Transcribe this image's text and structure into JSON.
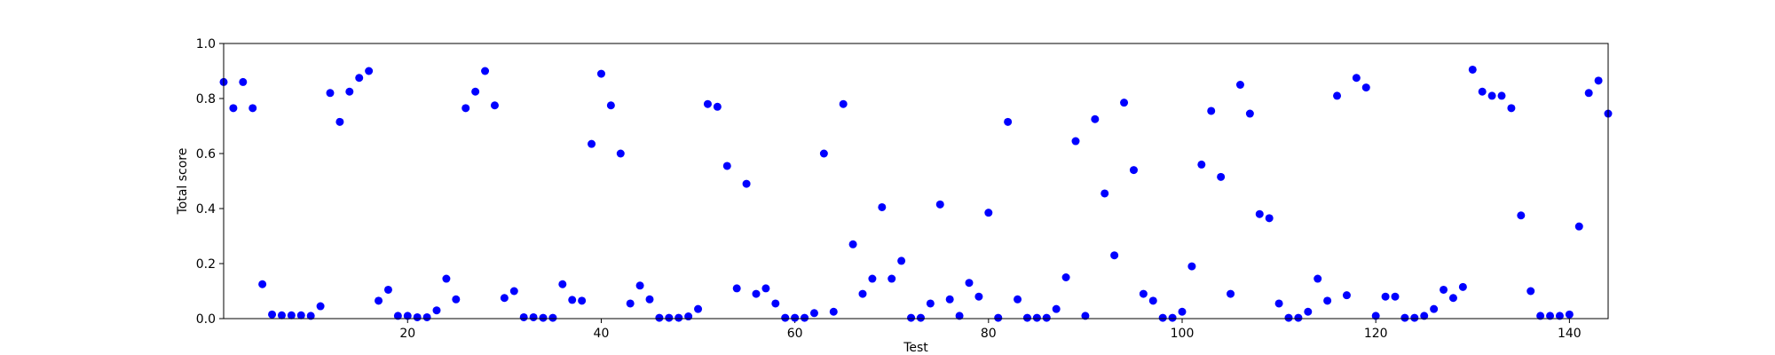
{
  "chart_data": {
    "type": "scatter",
    "xlabel": "Test",
    "ylabel": "Total score",
    "xlim": [
      1,
      144
    ],
    "ylim": [
      0.0,
      1.0
    ],
    "x_ticks": [
      20,
      40,
      60,
      80,
      100,
      120,
      140
    ],
    "y_ticks": [
      0.0,
      0.2,
      0.4,
      0.6,
      0.8,
      1.0
    ],
    "x_tick_labels": [
      "20",
      "40",
      "60",
      "80",
      "100",
      "120",
      "140"
    ],
    "y_tick_labels": [
      "0.0",
      "0.2",
      "0.4",
      "0.6",
      "0.8",
      "1.0"
    ],
    "grid": false,
    "marker_color": "#0000ff",
    "series": [
      {
        "x": [
          1,
          2,
          3,
          4,
          5,
          6,
          7,
          8,
          9,
          10,
          11,
          12,
          13,
          14,
          15,
          16,
          17,
          18,
          19,
          20,
          21,
          22,
          23,
          24,
          25,
          26,
          27,
          28,
          29,
          30,
          31,
          32,
          33,
          34,
          35,
          36,
          37,
          38,
          39,
          40,
          41,
          42,
          43,
          44,
          45,
          46,
          47,
          48,
          49,
          50,
          51,
          52,
          53,
          54,
          55,
          56,
          57,
          58,
          59,
          60,
          61,
          62,
          63,
          64,
          65,
          66,
          67,
          68,
          69,
          70,
          71,
          72,
          73,
          74,
          75,
          76,
          77,
          78,
          79,
          80,
          81,
          82,
          83,
          84,
          85,
          86,
          87,
          88,
          89,
          90,
          91,
          92,
          93,
          94,
          95,
          96,
          97,
          98,
          99,
          100,
          101,
          102,
          103,
          104,
          105,
          106,
          107,
          108,
          109,
          110,
          111,
          112,
          113,
          114,
          115,
          116,
          117,
          118,
          119,
          120,
          121,
          122,
          123,
          124,
          125,
          126,
          127,
          128,
          129,
          130,
          131,
          132,
          133,
          134,
          135,
          136,
          137,
          138,
          139,
          140,
          141,
          142,
          143,
          144
        ],
        "y": [
          0.86,
          0.765,
          0.86,
          0.765,
          0.125,
          0.015,
          0.012,
          0.012,
          0.012,
          0.01,
          0.045,
          0.82,
          0.715,
          0.825,
          0.875,
          0.9,
          0.065,
          0.105,
          0.01,
          0.01,
          0.005,
          0.005,
          0.03,
          0.145,
          0.07,
          0.765,
          0.825,
          0.9,
          0.775,
          0.075,
          0.1,
          0.005,
          0.005,
          0.003,
          0.003,
          0.125,
          0.068,
          0.065,
          0.635,
          0.89,
          0.775,
          0.6,
          0.055,
          0.12,
          0.07,
          0.003,
          0.003,
          0.003,
          0.008,
          0.035,
          0.78,
          0.77,
          0.555,
          0.11,
          0.49,
          0.09,
          0.11,
          0.055,
          0.003,
          0.003,
          0.003,
          0.02,
          0.6,
          0.025,
          0.78,
          0.27,
          0.09,
          0.145,
          0.405,
          0.145,
          0.21,
          0.003,
          0.003,
          0.055,
          0.415,
          0.07,
          0.01,
          0.13,
          0.08,
          0.385,
          0.003,
          0.715,
          0.07,
          0.003,
          0.003,
          0.003,
          0.035,
          0.15,
          0.645,
          0.01,
          0.725,
          0.455,
          0.23,
          0.785,
          0.54,
          0.09,
          0.065,
          0.003,
          0.003,
          0.025,
          0.19,
          0.56,
          0.755,
          0.515,
          0.09,
          0.85,
          0.745,
          0.38,
          0.365,
          0.055,
          0.003,
          0.003,
          0.025,
          0.145,
          0.065,
          0.81,
          0.085,
          0.875,
          0.84,
          0.01,
          0.08,
          0.08,
          0.003,
          0.003,
          0.01,
          0.035,
          0.105,
          0.075,
          0.115,
          0.905,
          0.825,
          0.81,
          0.81,
          0.765,
          0.375,
          0.1,
          0.01,
          0.01,
          0.01,
          0.015,
          0.335,
          0.82,
          0.865,
          0.745
        ]
      }
    ]
  }
}
